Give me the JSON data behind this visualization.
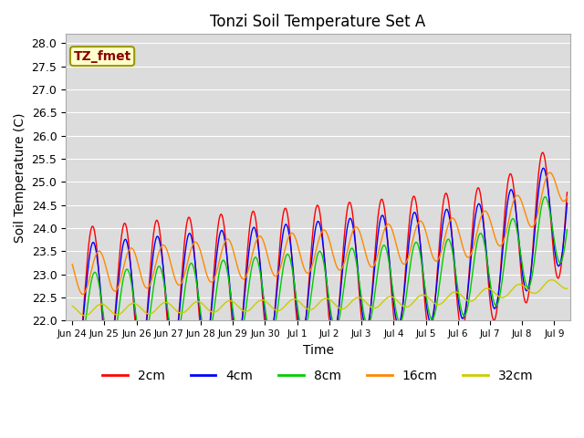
{
  "title": "Tonzi Soil Temperature Set A",
  "xlabel": "Time",
  "ylabel": "Soil Temperature (C)",
  "ylim": [
    22.0,
    28.2
  ],
  "annotation": "TZ_fmet",
  "colors": {
    "2cm": "#ff0000",
    "4cm": "#0000ff",
    "8cm": "#00cc00",
    "16cm": "#ff8800",
    "32cm": "#cccc00"
  },
  "legend_labels": [
    "2cm",
    "4cm",
    "8cm",
    "16cm",
    "32cm"
  ],
  "background_color": "#dcdcdc",
  "x_tick_labels": [
    "Jun 24",
    "Jun 25",
    "Jun 26",
    "Jun 27",
    "Jun 28",
    "Jun 29",
    "Jun 30",
    "Jul 1",
    "Jul 2",
    "Jul 3",
    "Jul 4",
    "Jul 5",
    "Jul 6",
    "Jul 7",
    "Jul 8",
    "Jul 9"
  ],
  "x_tick_positions": [
    0,
    1,
    2,
    3,
    4,
    5,
    6,
    7,
    8,
    9,
    10,
    11,
    12,
    13,
    14,
    15
  ]
}
